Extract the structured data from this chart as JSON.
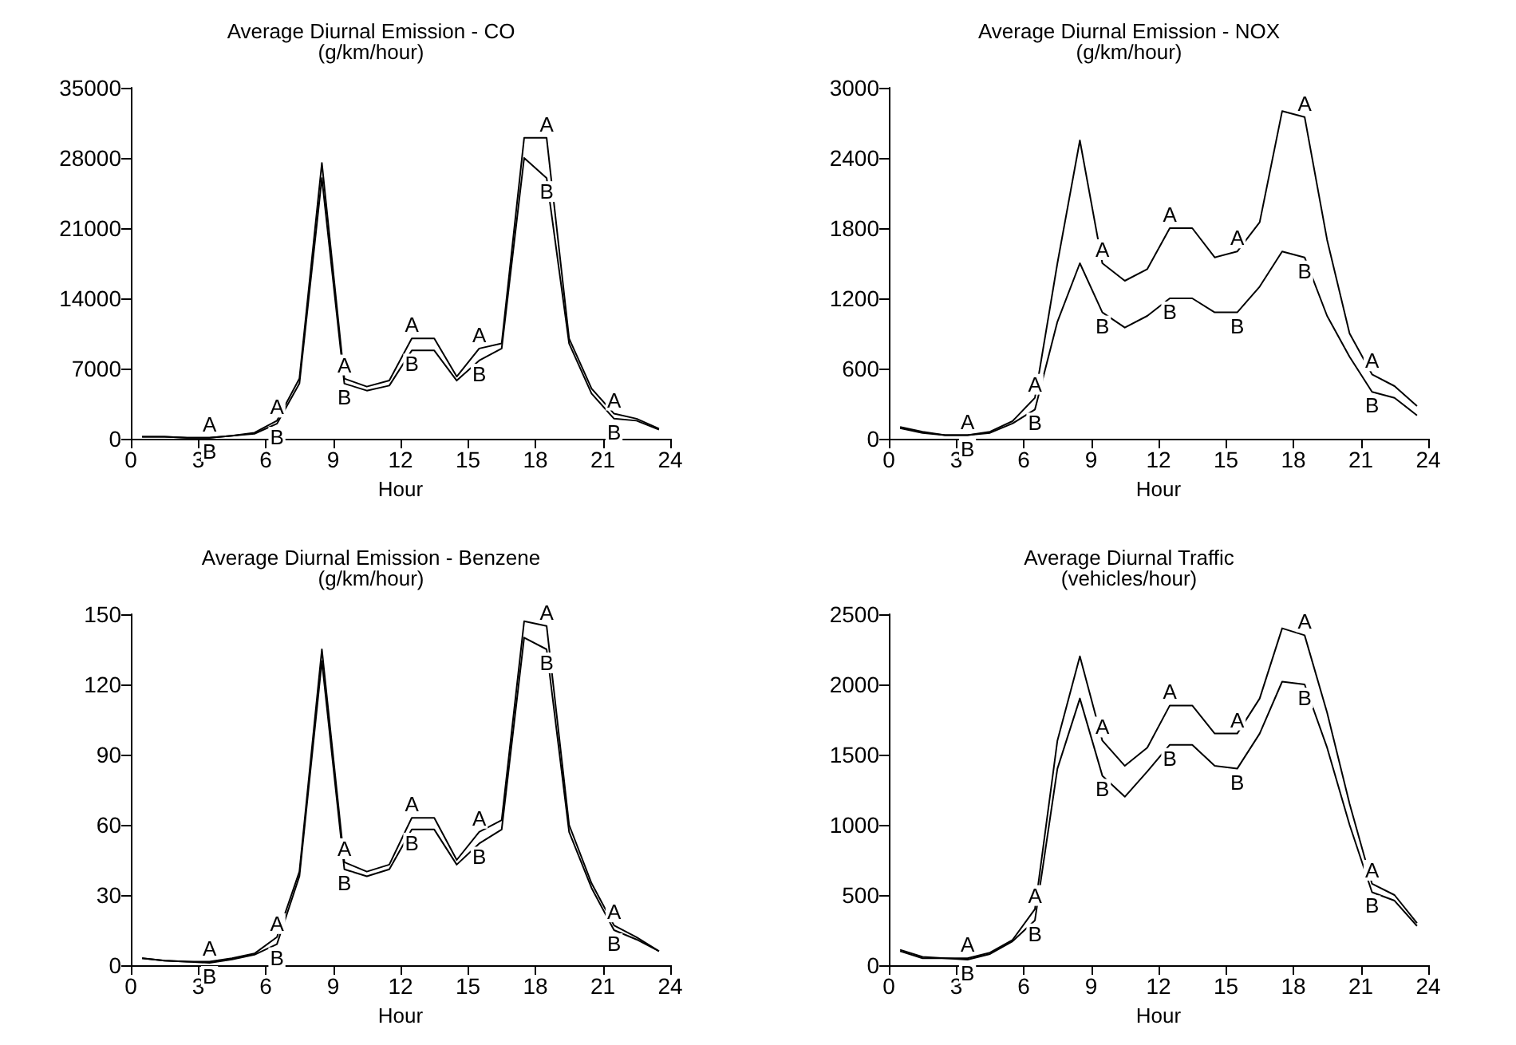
{
  "chart_data": [
    {
      "type": "line",
      "title": "Average Diurnal Emission - CO",
      "subtitle": "(g/km/hour)",
      "xlabel": "Hour",
      "x": [
        0.5,
        1.5,
        2.5,
        3.5,
        4.5,
        5.5,
        6.5,
        7.5,
        8.5,
        9.5,
        10.5,
        11.5,
        12.5,
        13.5,
        14.5,
        15.5,
        16.5,
        17.5,
        18.5,
        19.5,
        20.5,
        21.5,
        22.5,
        23.5
      ],
      "series": [
        {
          "name": "A",
          "color": "#000000",
          "values": [
            200,
            200,
            100,
            100,
            300,
            600,
            1800,
            6000,
            27500,
            6000,
            5200,
            5800,
            10000,
            10000,
            6200,
            9000,
            9500,
            30000,
            30000,
            10000,
            5000,
            2500,
            2000,
            1000
          ]
        },
        {
          "name": "B",
          "color": "#000000",
          "values": [
            200,
            200,
            100,
            100,
            300,
            500,
            1500,
            5500,
            26000,
            5500,
            4800,
            5300,
            8800,
            8800,
            5800,
            7800,
            9000,
            28000,
            26000,
            9500,
            4500,
            2000,
            1800,
            900
          ]
        }
      ],
      "xlim": [
        0,
        24
      ],
      "xticks": [
        0,
        3,
        6,
        9,
        12,
        15,
        18,
        21,
        24
      ],
      "ylim": [
        0,
        35000
      ],
      "yticks": [
        0,
        7000,
        14000,
        21000,
        28000,
        35000
      ]
    },
    {
      "type": "line",
      "title": "Average Diurnal Emission - NOX",
      "subtitle": "(g/km/hour)",
      "xlabel": "Hour",
      "x": [
        0.5,
        1.5,
        2.5,
        3.5,
        4.5,
        5.5,
        6.5,
        7.5,
        8.5,
        9.5,
        10.5,
        11.5,
        12.5,
        13.5,
        14.5,
        15.5,
        16.5,
        17.5,
        18.5,
        19.5,
        20.5,
        21.5,
        22.5,
        23.5
      ],
      "series": [
        {
          "name": "A",
          "color": "#000000",
          "values": [
            100,
            60,
            30,
            30,
            60,
            150,
            350,
            1500,
            2550,
            1500,
            1350,
            1450,
            1800,
            1800,
            1550,
            1600,
            1850,
            2800,
            2750,
            1700,
            900,
            550,
            450,
            280
          ]
        },
        {
          "name": "B",
          "color": "#000000",
          "values": [
            90,
            50,
            30,
            30,
            50,
            130,
            250,
            1000,
            1500,
            1080,
            950,
            1050,
            1200,
            1200,
            1080,
            1080,
            1300,
            1600,
            1550,
            1050,
            700,
            400,
            350,
            200
          ]
        }
      ],
      "xlim": [
        0,
        24
      ],
      "xticks": [
        0,
        3,
        6,
        9,
        12,
        15,
        18,
        21,
        24
      ],
      "ylim": [
        0,
        3000
      ],
      "yticks": [
        0,
        600,
        1200,
        1800,
        2400,
        3000
      ]
    },
    {
      "type": "line",
      "title": "Average Diurnal Emission - Benzene",
      "subtitle": "(g/km/hour)",
      "xlabel": "Hour",
      "x": [
        0.5,
        1.5,
        2.5,
        3.5,
        4.5,
        5.5,
        6.5,
        7.5,
        8.5,
        9.5,
        10.5,
        11.5,
        12.5,
        13.5,
        14.5,
        15.5,
        16.5,
        17.5,
        18.5,
        19.5,
        20.5,
        21.5,
        22.5,
        23.5
      ],
      "series": [
        {
          "name": "A",
          "color": "#000000",
          "values": [
            3,
            2,
            1.5,
            1.5,
            3,
            5,
            12,
            40,
            135,
            44,
            40,
            43,
            63,
            63,
            45,
            57,
            62,
            147,
            145,
            60,
            35,
            17,
            12,
            6
          ]
        },
        {
          "name": "B",
          "color": "#000000",
          "values": [
            3,
            2,
            1.5,
            1,
            2.5,
            4.5,
            9,
            38,
            130,
            41,
            38,
            41,
            58,
            58,
            43,
            52,
            58,
            140,
            135,
            57,
            33,
            15,
            11,
            6
          ]
        }
      ],
      "xlim": [
        0,
        24
      ],
      "xticks": [
        0,
        3,
        6,
        9,
        12,
        15,
        18,
        21,
        24
      ],
      "ylim": [
        0,
        150
      ],
      "yticks": [
        0,
        30,
        60,
        90,
        120,
        150
      ]
    },
    {
      "type": "line",
      "title": "Average Diurnal Traffic",
      "subtitle": "(vehicles/hour)",
      "xlabel": "Hour",
      "x": [
        0.5,
        1.5,
        2.5,
        3.5,
        4.5,
        5.5,
        6.5,
        7.5,
        8.5,
        9.5,
        10.5,
        11.5,
        12.5,
        13.5,
        14.5,
        15.5,
        16.5,
        17.5,
        18.5,
        19.5,
        20.5,
        21.5,
        22.5,
        23.5
      ],
      "series": [
        {
          "name": "A",
          "color": "#000000",
          "values": [
            110,
            60,
            50,
            50,
            90,
            180,
            400,
            1600,
            2200,
            1600,
            1420,
            1550,
            1850,
            1850,
            1650,
            1650,
            1900,
            2400,
            2350,
            1800,
            1150,
            580,
            500,
            300
          ]
        },
        {
          "name": "B",
          "color": "#000000",
          "values": [
            100,
            50,
            50,
            40,
            80,
            170,
            320,
            1400,
            1900,
            1350,
            1200,
            1380,
            1570,
            1570,
            1420,
            1400,
            1650,
            2020,
            2000,
            1550,
            1000,
            520,
            460,
            280
          ]
        }
      ],
      "xlim": [
        0,
        24
      ],
      "xticks": [
        0,
        3,
        6,
        9,
        12,
        15,
        18,
        21,
        24
      ],
      "ylim": [
        0,
        2500
      ],
      "yticks": [
        0,
        500,
        1000,
        1500,
        2000,
        2500
      ]
    }
  ]
}
